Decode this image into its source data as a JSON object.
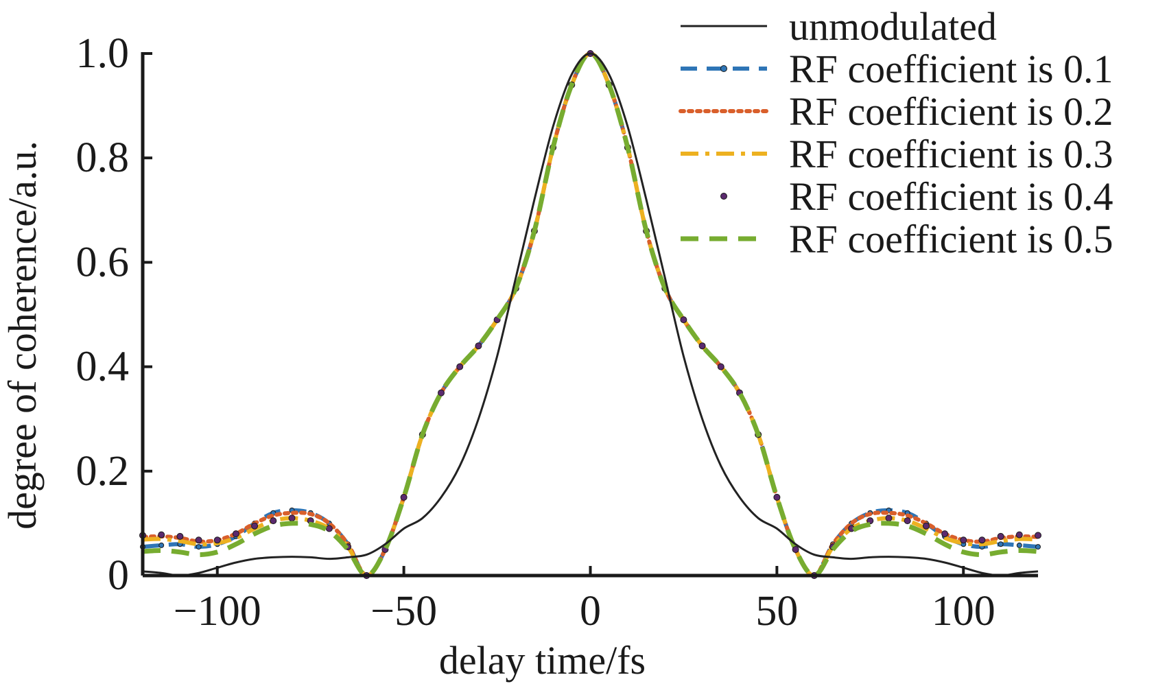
{
  "chart_data": {
    "type": "line",
    "xlabel": "delay time/fs",
    "ylabel": "degree of coherence/a.u.",
    "xlim": [
      -120,
      120
    ],
    "ylim": [
      0,
      1.0
    ],
    "xticks": [
      -100,
      -50,
      0,
      50,
      100
    ],
    "xtick_labels": [
      "−100",
      "−50",
      "0",
      "50",
      "100"
    ],
    "yticks": [
      0,
      0.2,
      0.4,
      0.6,
      0.8,
      1.0
    ],
    "ytick_labels": [
      "0",
      "0.2",
      "0.4",
      "0.6",
      "0.8",
      "1.0"
    ],
    "grid": false,
    "legend_position": "top-right",
    "x": [
      0,
      5,
      10,
      15,
      20,
      25,
      30,
      35,
      40,
      45,
      50,
      55,
      60,
      65,
      70,
      75,
      80,
      85,
      90,
      95,
      100,
      105,
      110,
      115,
      120
    ],
    "series": [
      {
        "name": "unmodulated",
        "color": "#222222",
        "style": "solid",
        "values": [
          1.0,
          0.96,
          0.86,
          0.72,
          0.57,
          0.42,
          0.3,
          0.21,
          0.15,
          0.11,
          0.09,
          0.06,
          0.04,
          0.035,
          0.032,
          0.035,
          0.036,
          0.035,
          0.032,
          0.025,
          0.015,
          0.005,
          0.0,
          0.005,
          0.008
        ]
      },
      {
        "name": "RF coefficient is 0.1",
        "color": "#2E75B6",
        "style": "dashed-dot-marker",
        "values": [
          1.0,
          0.94,
          0.82,
          0.66,
          0.55,
          0.49,
          0.44,
          0.4,
          0.35,
          0.27,
          0.15,
          0.05,
          0.0,
          0.06,
          0.1,
          0.12,
          0.125,
          0.12,
          0.1,
          0.075,
          0.06,
          0.055,
          0.06,
          0.058,
          0.055
        ]
      },
      {
        "name": "RF coefficient is 0.2",
        "color": "#D95F2B",
        "style": "dotted",
        "values": [
          1.0,
          0.94,
          0.82,
          0.66,
          0.55,
          0.49,
          0.44,
          0.4,
          0.35,
          0.27,
          0.15,
          0.05,
          0.0,
          0.06,
          0.1,
          0.118,
          0.12,
          0.115,
          0.1,
          0.08,
          0.068,
          0.065,
          0.072,
          0.075,
          0.074
        ]
      },
      {
        "name": "RF coefficient is 0.3",
        "color": "#EDB120",
        "style": "dash-dot",
        "values": [
          1.0,
          0.94,
          0.82,
          0.66,
          0.55,
          0.49,
          0.44,
          0.4,
          0.35,
          0.27,
          0.15,
          0.05,
          0.0,
          0.055,
          0.09,
          0.105,
          0.11,
          0.105,
          0.09,
          0.072,
          0.062,
          0.06,
          0.066,
          0.07,
          0.069
        ]
      },
      {
        "name": "RF coefficient is 0.4",
        "color": "#5B2A6E",
        "style": "markers",
        "values": [
          1.0,
          0.94,
          0.82,
          0.66,
          0.55,
          0.49,
          0.44,
          0.4,
          0.35,
          0.27,
          0.15,
          0.05,
          0.0,
          0.055,
          0.09,
          0.105,
          0.11,
          0.105,
          0.095,
          0.08,
          0.068,
          0.068,
          0.075,
          0.078,
          0.077
        ]
      },
      {
        "name": "RF coefficient is 0.5",
        "color": "#77AC30",
        "style": "dashed",
        "values": [
          1.0,
          0.94,
          0.82,
          0.66,
          0.55,
          0.49,
          0.44,
          0.4,
          0.35,
          0.27,
          0.15,
          0.05,
          0.0,
          0.05,
          0.085,
          0.098,
          0.1,
          0.095,
          0.08,
          0.06,
          0.045,
          0.04,
          0.045,
          0.048,
          0.046
        ]
      }
    ]
  }
}
